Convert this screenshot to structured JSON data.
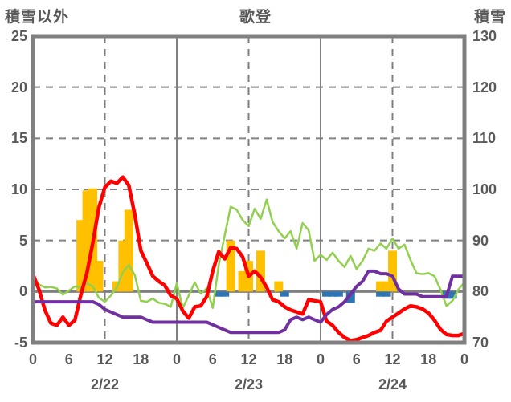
{
  "header": {
    "left_axis_title": "積雪以外",
    "chart_title": "歌登",
    "right_axis_title": "積雪"
  },
  "chart_data": {
    "type": "mixed bar+line, dual y-axis",
    "title": "歌登",
    "left_axis": {
      "title": "積雪以外",
      "min": -5,
      "max": 25,
      "ticks": [
        25,
        20,
        15,
        10,
        5,
        0,
        -5
      ],
      "dashed_grid_values": [
        20,
        15,
        10,
        5
      ],
      "zero_line_value": 0
    },
    "right_axis": {
      "title": "積雪",
      "min": 70,
      "max": 130,
      "ticks": [
        130,
        120,
        110,
        100,
        90,
        80,
        70
      ]
    },
    "x_axis": {
      "total_hours": 72,
      "hour_tick_step": 6,
      "hour_tick_labels": [
        "0",
        "6",
        "12",
        "18",
        "0",
        "6",
        "12",
        "18",
        "0",
        "6",
        "12",
        "18",
        "0"
      ],
      "date_labels": [
        "2/22",
        "2/23",
        "2/24"
      ],
      "date_label_hours": [
        12,
        36,
        60
      ],
      "dashed_grid_hours": [
        12,
        36,
        60
      ],
      "solid_grid_hours": [
        24,
        48
      ]
    },
    "colors": {
      "red_line": "#FF0000",
      "green_line": "#92D050",
      "purple_line": "#7030A0",
      "orange_bar": "#FFC000",
      "blue_bar": "#2E75B6",
      "grid": "#808080",
      "border": "#808080",
      "text": "#595959"
    },
    "series": [
      {
        "name": "red-line",
        "type": "line",
        "axis": "left",
        "color": "#FF0000",
        "width": 4.5,
        "values": [
          1.7,
          0.2,
          -1.8,
          -3.1,
          -3.3,
          -2.5,
          -3.3,
          -2.8,
          -0.3,
          1.8,
          4.8,
          8.2,
          10.2,
          10.8,
          10.6,
          11.2,
          10.4,
          7.5,
          4.0,
          2.8,
          1.5,
          1.0,
          0.6,
          -0.4,
          -0.7,
          -1.9,
          -2.6,
          -1.5,
          -1.4,
          -0.5,
          2.0,
          3.9,
          3.2,
          4.3,
          4.2,
          3.4,
          1.5,
          2.0,
          1.4,
          0.4,
          -0.8,
          -1.0,
          -1.5,
          -1.8,
          -2.0,
          -2.2,
          -0.8,
          -0.9,
          -1.0,
          -2.9,
          -3.3,
          -4.0,
          -4.5,
          -4.8,
          -4.7,
          -4.5,
          -4.3,
          -4.0,
          -3.8,
          -2.9,
          -2.5,
          -2.1,
          -1.7,
          -1.4,
          -1.5,
          -1.7,
          -2.1,
          -2.8,
          -3.7,
          -4.2,
          -4.3,
          -4.3,
          -4.1
        ]
      },
      {
        "name": "green-line",
        "type": "line",
        "axis": "left",
        "color": "#92D050",
        "width": 2.5,
        "values": [
          1.1,
          0.7,
          0.4,
          0.45,
          0.3,
          -0.3,
          0.1,
          0.5,
          0.4,
          0.8,
          0.5,
          -0.6,
          -1.0,
          -0.4,
          0.4,
          1.9,
          2.6,
          1.6,
          -0.9,
          -1.0,
          -0.7,
          -1.1,
          -1.2,
          -1.5,
          0.8,
          -1.6,
          -0.4,
          0.9,
          -0.2,
          0.3,
          -1.6,
          2.6,
          5.5,
          8.3,
          8.0,
          7.0,
          6.4,
          8.1,
          7.1,
          9.0,
          6.8,
          5.9,
          5.2,
          5.9,
          4.2,
          6.7,
          6.0,
          3.0,
          3.6,
          3.1,
          3.8,
          3.0,
          2.4,
          3.5,
          2.2,
          3.0,
          4.2,
          4.0,
          4.7,
          4.2,
          5.2,
          4.2,
          4.6,
          3.1,
          1.8,
          1.7,
          1.8,
          1.5,
          0.2,
          -1.4,
          -0.9,
          0.2,
          0.9
        ]
      },
      {
        "name": "purple-line",
        "type": "line",
        "axis": "right",
        "color": "#7030A0",
        "width": 4,
        "values": [
          78,
          78,
          78,
          78,
          78,
          78,
          78,
          78,
          78,
          78,
          78,
          77.5,
          76.5,
          76,
          75.5,
          75,
          75,
          75,
          75,
          74.5,
          74,
          74,
          74,
          74,
          74,
          74,
          74,
          74,
          74,
          74,
          73.5,
          73,
          72.5,
          72,
          72,
          72,
          72,
          72,
          72,
          72,
          72,
          72,
          72.5,
          74.5,
          75,
          74.5,
          75,
          74.5,
          74,
          75.5,
          76.5,
          77,
          78,
          79.5,
          81,
          82,
          84,
          84,
          83.5,
          83.5,
          83,
          80.5,
          79.5,
          79.5,
          79.5,
          79,
          79,
          79,
          79,
          79,
          83,
          83,
          83
        ]
      },
      {
        "name": "orange-bars",
        "type": "bar",
        "axis": "left",
        "color": "#FFC000",
        "points": [
          {
            "hour": 8,
            "value": 7
          },
          {
            "hour": 9,
            "value": 9.9
          },
          {
            "hour": 10,
            "value": 10.1
          },
          {
            "hour": 11,
            "value": 3
          },
          {
            "hour": 14,
            "value": 1
          },
          {
            "hour": 15,
            "value": 5
          },
          {
            "hour": 16,
            "value": 8
          },
          {
            "hour": 33,
            "value": 5
          },
          {
            "hour": 35,
            "value": 2
          },
          {
            "hour": 36,
            "value": 3
          },
          {
            "hour": 38,
            "value": 4
          },
          {
            "hour": 41,
            "value": 1
          },
          {
            "hour": 58,
            "value": 1
          },
          {
            "hour": 59,
            "value": 1
          },
          {
            "hour": 60,
            "value": 4
          }
        ]
      },
      {
        "name": "blue-bars",
        "type": "bar",
        "axis": "left",
        "color": "#2E75B6",
        "points": [
          {
            "hour": 31,
            "value": -0.5
          },
          {
            "hour": 32,
            "value": -0.5
          },
          {
            "hour": 42,
            "value": -0.5
          },
          {
            "hour": 49,
            "value": -0.5
          },
          {
            "hour": 50,
            "value": -0.5
          },
          {
            "hour": 51,
            "value": -0.5
          },
          {
            "hour": 53,
            "value": -1.1
          },
          {
            "hour": 58,
            "value": -0.5
          },
          {
            "hour": 59,
            "value": -0.5
          },
          {
            "hour": 69,
            "value": -0.7
          },
          {
            "hour": 70,
            "value": -0.7
          }
        ]
      }
    ]
  }
}
